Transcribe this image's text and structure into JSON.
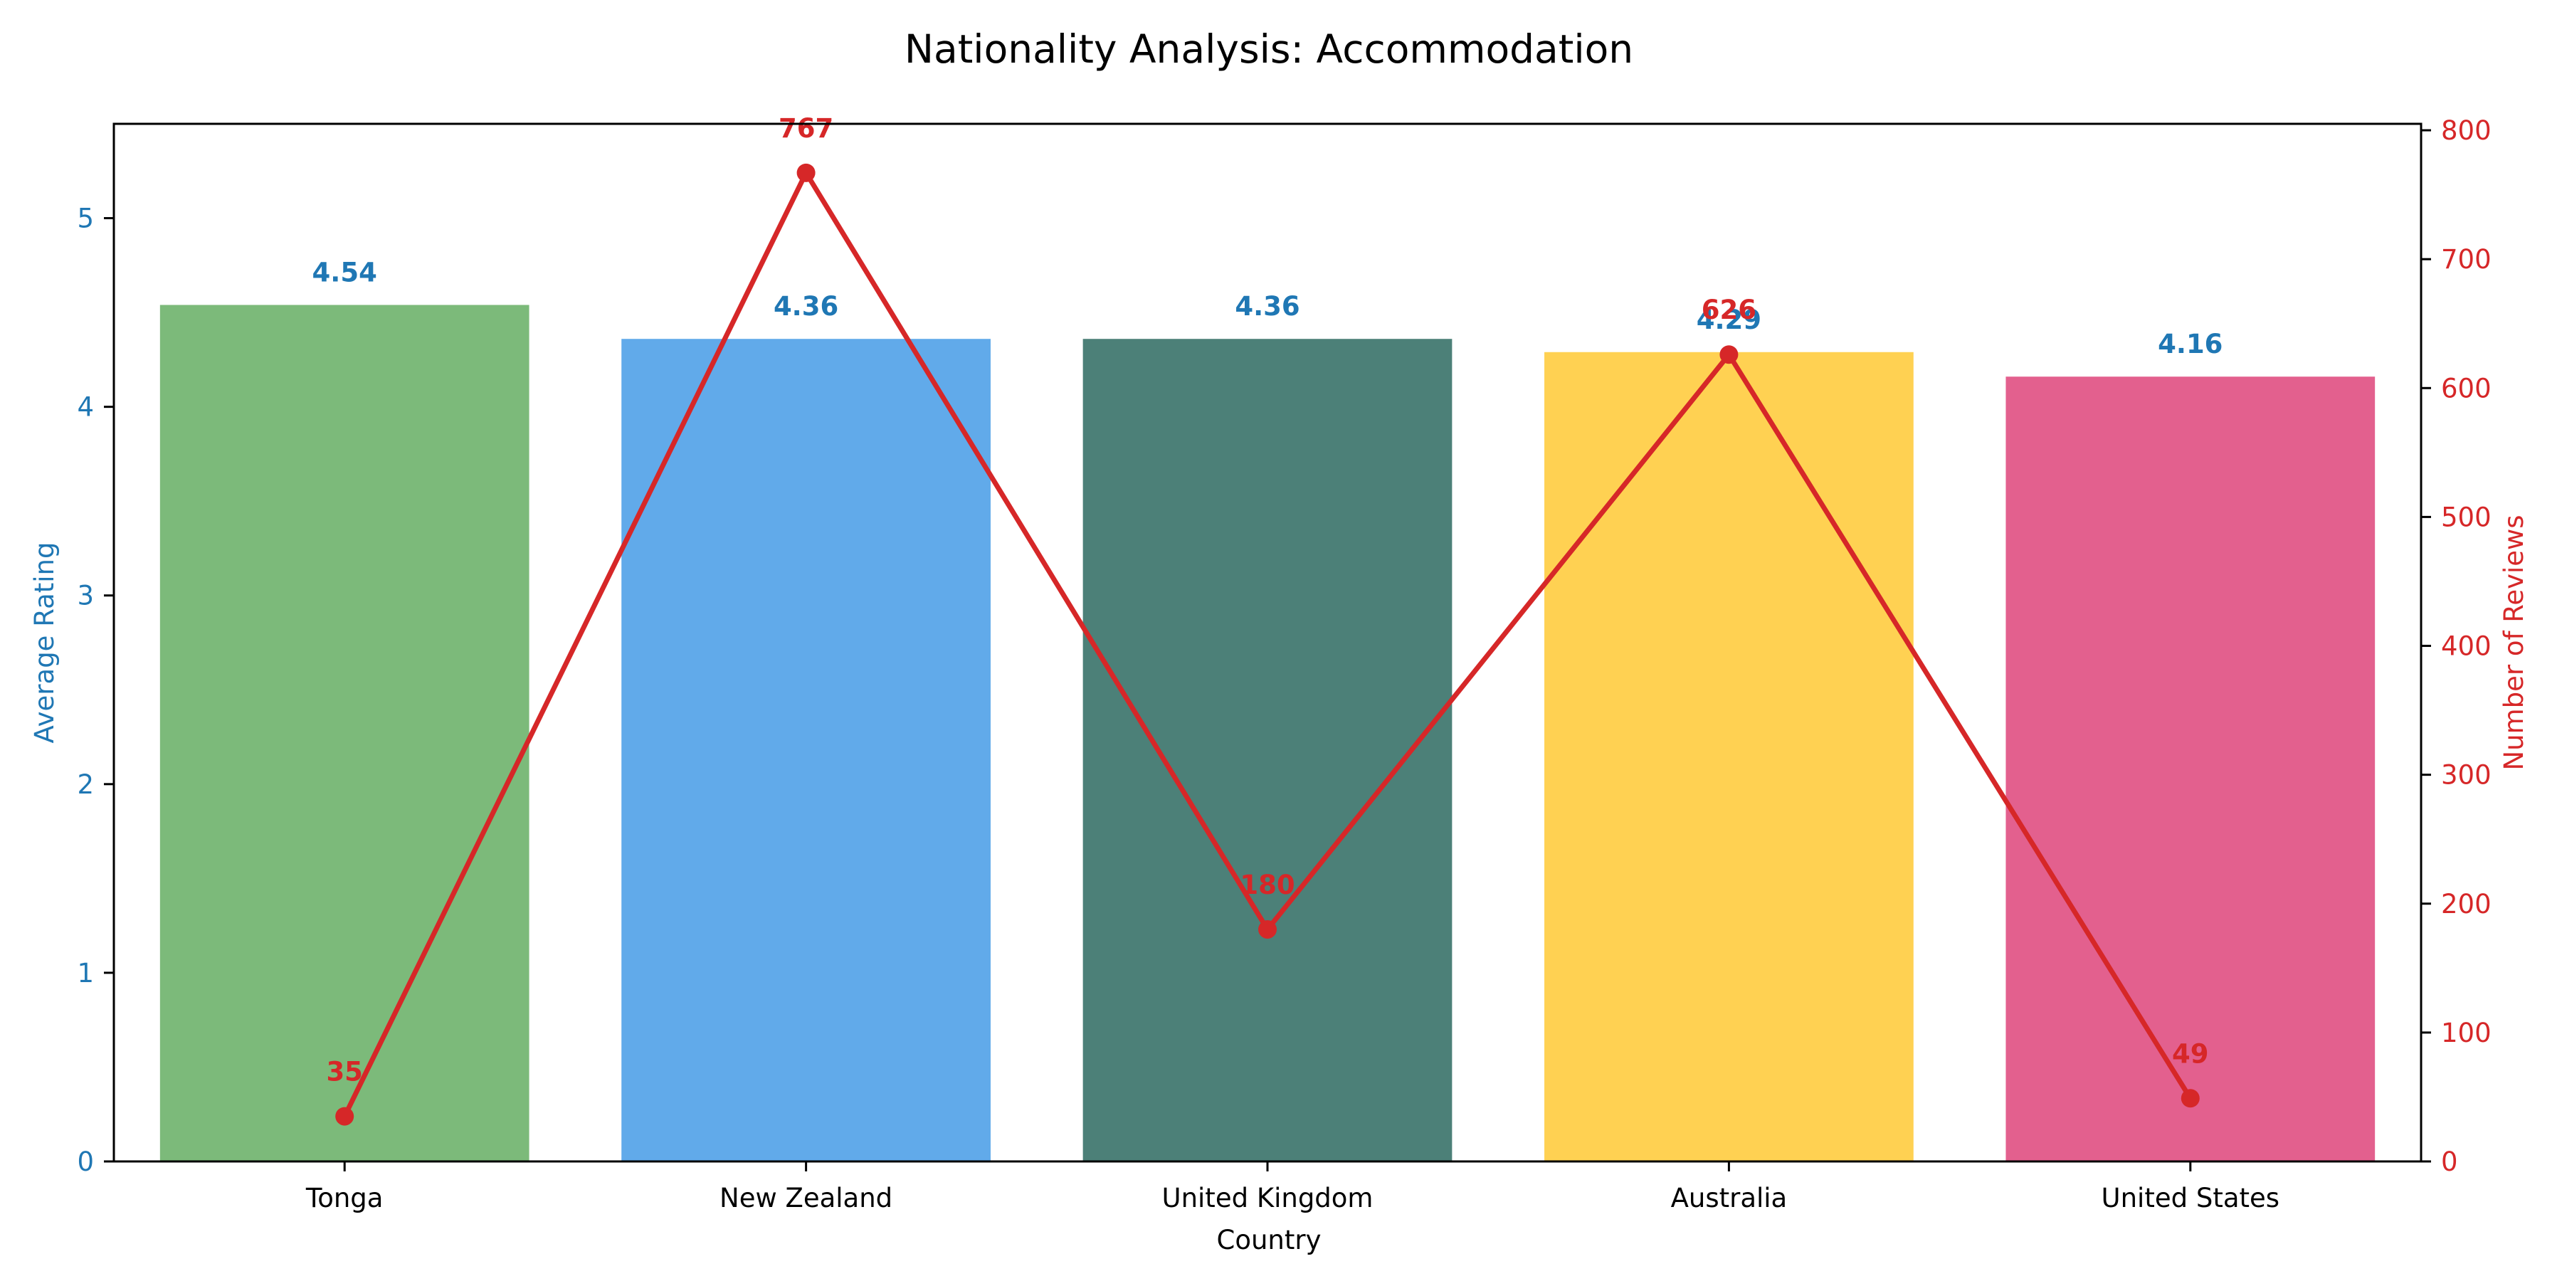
{
  "chart_data": {
    "type": "bar",
    "title": "Nationality Analysis: Accommodation",
    "xlabel": "Country",
    "categories": [
      "Tonga",
      "New Zealand",
      "United Kingdom",
      "Australia",
      "United States"
    ],
    "bar_colors": [
      "#7CBA7A",
      "#61AAEA",
      "#4C8078",
      "#FFD152",
      "#E3608E"
    ],
    "left_axis": {
      "label": "Average Rating",
      "color": "#1f77b4",
      "range": [
        0,
        5.5
      ],
      "ticks": [
        0,
        1,
        2,
        3,
        4,
        5
      ]
    },
    "right_axis": {
      "label": "Number of Reviews",
      "color": "#d62728",
      "range": [
        0,
        805
      ],
      "ticks": [
        0,
        100,
        200,
        300,
        400,
        500,
        600,
        700,
        800
      ]
    },
    "series": [
      {
        "name": "Average Rating",
        "kind": "bar",
        "axis": "left",
        "values": [
          4.54,
          4.36,
          4.36,
          4.29,
          4.16
        ],
        "labels": [
          "4.54",
          "4.36",
          "4.36",
          "4.29",
          "4.16"
        ]
      },
      {
        "name": "Number of Reviews",
        "kind": "line",
        "axis": "right",
        "color": "#d62728",
        "values": [
          35,
          767,
          180,
          626,
          49
        ],
        "labels": [
          "35",
          "767",
          "180",
          "626",
          "49"
        ]
      }
    ],
    "grid": false,
    "legend": "none"
  }
}
